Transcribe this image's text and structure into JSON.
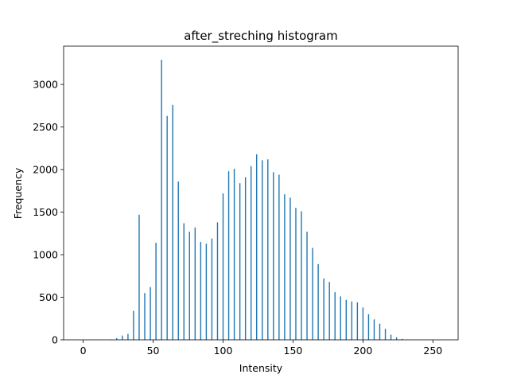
{
  "chart_data": {
    "type": "bar",
    "title": "after_streching histogram",
    "xlabel": "Intensity",
    "ylabel": "Frequency",
    "xlim": [
      -14,
      268
    ],
    "ylim": [
      0,
      3450
    ],
    "xticks": [
      0,
      50,
      100,
      150,
      200,
      250
    ],
    "yticks": [
      0,
      500,
      1000,
      1500,
      2000,
      2500,
      3000
    ],
    "grid": false,
    "bar_color": "#1f77b4",
    "x": [
      20,
      24,
      28,
      32,
      36,
      40,
      44,
      48,
      52,
      56,
      60,
      64,
      68,
      72,
      76,
      80,
      84,
      88,
      92,
      96,
      100,
      104,
      108,
      112,
      116,
      120,
      124,
      128,
      132,
      136,
      140,
      144,
      148,
      152,
      156,
      160,
      164,
      168,
      172,
      176,
      180,
      184,
      188,
      192,
      196,
      200,
      204,
      208,
      212,
      216,
      220,
      224,
      228,
      232,
      236
    ],
    "values": [
      5,
      20,
      50,
      70,
      340,
      1470,
      550,
      620,
      1140,
      3290,
      2630,
      2760,
      1860,
      1370,
      1270,
      1320,
      1150,
      1130,
      1190,
      1380,
      1720,
      1980,
      2010,
      1840,
      1910,
      2040,
      2180,
      2110,
      2120,
      1970,
      1940,
      1710,
      1670,
      1550,
      1510,
      1270,
      1080,
      890,
      720,
      680,
      560,
      510,
      470,
      450,
      440,
      380,
      300,
      240,
      190,
      130,
      60,
      30,
      10,
      5,
      5
    ]
  }
}
